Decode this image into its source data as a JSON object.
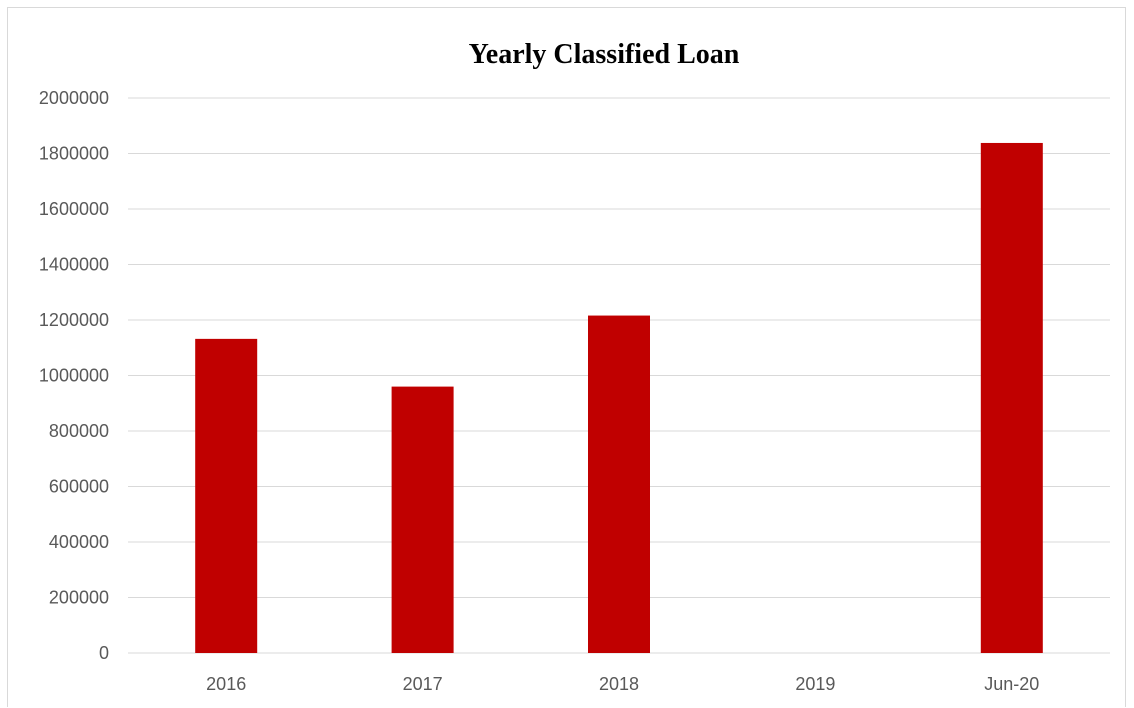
{
  "chart_data": {
    "type": "bar",
    "title": "Yearly Classified Loan",
    "xlabel": "",
    "ylabel": "",
    "categories": [
      "2016",
      "2017",
      "2018",
      "2019",
      "Jun-20"
    ],
    "values": [
      1132000,
      960000,
      1216000,
      0,
      1838000
    ],
    "ylim": [
      0,
      2000000
    ],
    "yticks": [
      "0",
      "200000",
      "400000",
      "600000",
      "800000",
      "1000000",
      "1200000",
      "1400000",
      "1600000",
      "1800000",
      "2000000"
    ],
    "grid": true,
    "legend": "none",
    "bar_color": "#c00000"
  }
}
